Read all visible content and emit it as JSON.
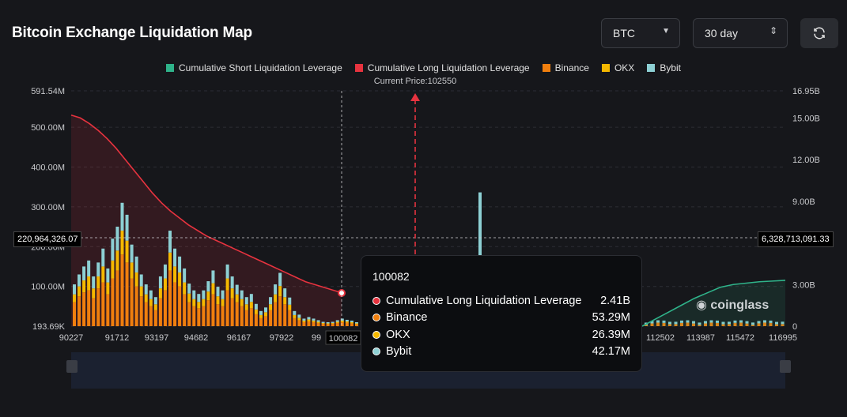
{
  "header": {
    "title": "Bitcoin Exchange Liquidation Map"
  },
  "controls": {
    "coin": "BTC",
    "range": "30 day",
    "refresh_icon": "refresh-icon"
  },
  "legend": [
    {
      "label": "Cumulative Short Liquidation Leverage",
      "color": "#2fb38a"
    },
    {
      "label": "Cumulative Long Liquidation Leverage",
      "color": "#e7333f"
    },
    {
      "label": "Binance",
      "color": "#f07f0e"
    },
    {
      "label": "OKX",
      "color": "#f5b800"
    },
    {
      "label": "Bybit",
      "color": "#8dd0d4"
    }
  ],
  "current_price_label": "Current Price:102550",
  "brand": "coinglass",
  "crosshair": {
    "left_value": "220,964,326.07",
    "right_value": "6,328,713,091.33",
    "x_value": "100082"
  },
  "tooltip": {
    "title": "100082",
    "rows": [
      {
        "name": "Cumulative Long Liquidation Leverage",
        "value": "2.41B",
        "color": "#e7333f"
      },
      {
        "name": "Binance",
        "value": "53.29M",
        "color": "#f07f0e"
      },
      {
        "name": "OKX",
        "value": "26.39M",
        "color": "#f5b800"
      },
      {
        "name": "Bybit",
        "value": "42.17M",
        "color": "#8dd0d4"
      }
    ]
  },
  "chart_data": {
    "type": "bar",
    "title": "Bitcoin Exchange Liquidation Map",
    "x_ticks": [
      "90227",
      "91712",
      "93197",
      "94682",
      "96167",
      "97922",
      "99",
      "100082",
      "112502",
      "113987",
      "115472",
      "116995"
    ],
    "y_left_ticks": [
      "193.69K",
      "100.00M",
      "200.00M",
      "300.00M",
      "400.00M",
      "500.00M",
      "591.54M"
    ],
    "y_right_ticks": [
      "0",
      "3.00B",
      "6.00B",
      "9.00B",
      "12.00B",
      "15.00B",
      "16.95B"
    ],
    "ylim_left": [
      0.19369,
      591.54
    ],
    "ylim_right": [
      0,
      16.95
    ],
    "left_unit": "M",
    "right_unit": "B",
    "current_price": 102550,
    "series": [
      {
        "name": "Binance",
        "values": [
          60,
          75,
          85,
          90,
          70,
          95,
          110,
          80,
          120,
          140,
          180,
          160,
          120,
          100,
          75,
          60,
          50,
          40,
          70,
          90,
          140,
          110,
          100,
          80,
          60,
          50,
          45,
          50,
          65,
          80,
          55,
          50,
          90,
          70,
          60,
          50,
          40,
          45,
          30,
          20,
          25,
          40,
          60,
          75,
          55,
          40,
          20,
          15,
          10,
          12,
          10,
          8,
          6,
          5,
          6,
          8,
          10,
          9,
          7,
          5
        ]
      },
      {
        "name": "OKX",
        "values": [
          20,
          25,
          30,
          35,
          25,
          30,
          40,
          30,
          45,
          50,
          60,
          55,
          40,
          35,
          25,
          20,
          18,
          15,
          25,
          30,
          45,
          40,
          35,
          30,
          22,
          18,
          16,
          18,
          22,
          28,
          20,
          18,
          30,
          25,
          20,
          18,
          15,
          16,
          12,
          8,
          10,
          15,
          20,
          26,
          18,
          14,
          8,
          6,
          4,
          5,
          4,
          3,
          2,
          2,
          2,
          3,
          4,
          3,
          3,
          2
        ]
      },
      {
        "name": "Bybit",
        "values": [
          25,
          30,
          35,
          40,
          30,
          35,
          45,
          35,
          55,
          60,
          70,
          65,
          45,
          40,
          30,
          25,
          22,
          18,
          30,
          35,
          55,
          45,
          40,
          35,
          25,
          22,
          20,
          22,
          26,
          32,
          24,
          22,
          35,
          30,
          24,
          22,
          18,
          20,
          14,
          10,
          12,
          18,
          25,
          33,
          22,
          18,
          10,
          8,
          5,
          6,
          5,
          4,
          3,
          3,
          3,
          4,
          5,
          4,
          4,
          3
        ]
      },
      {
        "name": "Cumulative Long Liquidation Leverage",
        "values": [
          15.2,
          15.0,
          14.6,
          14.1,
          13.5,
          12.8,
          12.0,
          11.2,
          10.4,
          9.6,
          8.9,
          8.3,
          7.8,
          7.3,
          6.9,
          6.5,
          6.2,
          5.9,
          5.6,
          5.3,
          5.0,
          4.7,
          4.4,
          4.1,
          3.8,
          3.5,
          3.2,
          3.0,
          2.8,
          2.6,
          2.41
        ]
      },
      {
        "name": "Cumulative Short Liquidation Leverage",
        "values": [
          0.0,
          0.5,
          1.0,
          1.5,
          2.0,
          2.4,
          2.8,
          3.0,
          3.1,
          3.2,
          3.25,
          3.3
        ]
      }
    ]
  }
}
